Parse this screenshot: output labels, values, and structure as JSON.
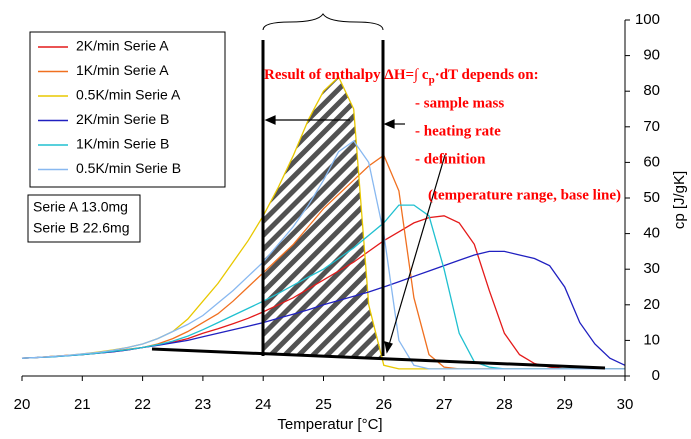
{
  "chart_data": {
    "type": "line",
    "xlabel": "Temperatur [°C]",
    "ylabel": "cp [J/gK]",
    "x": [
      20,
      20.25,
      20.5,
      20.75,
      21,
      21.25,
      21.5,
      21.75,
      22,
      22.25,
      22.5,
      22.75,
      23,
      23.25,
      23.5,
      23.75,
      24,
      24.25,
      24.5,
      24.75,
      25,
      25.25,
      25.5,
      25.75,
      26,
      26.25,
      26.5,
      26.75,
      27,
      27.25,
      27.5,
      27.75,
      28,
      28.25,
      28.5,
      28.75,
      29,
      29.25,
      29.5,
      29.75,
      30
    ],
    "series": [
      {
        "name": "2K/min Serie A",
        "color": "#e41a1a",
        "values": [
          5,
          5.2,
          5.5,
          5.8,
          6,
          6.4,
          6.8,
          7.3,
          8,
          8.7,
          9.5,
          10.5,
          12,
          13.3,
          14.7,
          16.2,
          18,
          20,
          22,
          24.5,
          27,
          29.5,
          32,
          35,
          38,
          40.5,
          43,
          44.5,
          45,
          43,
          37,
          24,
          12,
          6,
          3.5,
          2.5,
          2,
          2,
          2,
          2,
          2
        ]
      },
      {
        "name": "1K/min Serie A",
        "color": "#f07020",
        "values": [
          5,
          5.2,
          5.5,
          5.8,
          6,
          6.5,
          7,
          7.5,
          8,
          9,
          10.5,
          12.5,
          15,
          17.5,
          21,
          25,
          29,
          33,
          37,
          42,
          47,
          51,
          55,
          59,
          62,
          52,
          22,
          6,
          2.5,
          2,
          2,
          2,
          2,
          2,
          2,
          2,
          2,
          2,
          2,
          2,
          2
        ]
      },
      {
        "name": "0.5K/min Serie A",
        "color": "#e8c800",
        "values": [
          5,
          5.2,
          5.5,
          5.8,
          6.2,
          6.7,
          7.3,
          8,
          9,
          10.5,
          12.5,
          16,
          21,
          26,
          32,
          38,
          45,
          53,
          62,
          72,
          80,
          84,
          75,
          20,
          3,
          2,
          2,
          2,
          2,
          2,
          2,
          2,
          2,
          2,
          2,
          2,
          2,
          2,
          2,
          2,
          2
        ]
      },
      {
        "name": "2K/min Serie B",
        "color": "#2020c0",
        "values": [
          5,
          5.2,
          5.4,
          5.7,
          6,
          6.4,
          6.8,
          7.3,
          8,
          8.6,
          9.3,
          10,
          11,
          12,
          13,
          14,
          15,
          16.2,
          17.4,
          18.6,
          20,
          21.2,
          22.4,
          23.6,
          25,
          26.5,
          28,
          29.5,
          31,
          32.5,
          34,
          35,
          35,
          34,
          33,
          31,
          25,
          15,
          9,
          5,
          3
        ]
      },
      {
        "name": "1K/min Serie B",
        "color": "#20c0d0",
        "values": [
          5,
          5.2,
          5.4,
          5.7,
          6,
          6.4,
          6.9,
          7.4,
          8,
          8.8,
          9.8,
          11.2,
          13,
          15,
          17,
          19,
          21,
          23.2,
          25.5,
          27.8,
          30,
          33,
          36,
          39.5,
          43,
          48,
          48,
          45,
          30,
          12,
          4,
          2.5,
          2,
          2,
          2,
          2,
          2,
          2,
          2,
          2,
          2
        ]
      },
      {
        "name": "0.5K/min Serie B",
        "color": "#88b8f0",
        "values": [
          5,
          5.2,
          5.5,
          5.8,
          6.2,
          6.6,
          7.2,
          8,
          9,
          10.5,
          12.5,
          14.5,
          17,
          20.5,
          24,
          28,
          32,
          37,
          42,
          48,
          55,
          63,
          66,
          60,
          40,
          10,
          3,
          2,
          2,
          2,
          2,
          2,
          2,
          2,
          2,
          2,
          2,
          2,
          2,
          2,
          2
        ]
      }
    ],
    "xlim": [
      20,
      30
    ],
    "xticks": [
      20,
      21,
      22,
      23,
      24,
      25,
      26,
      27,
      28,
      29,
      30
    ],
    "ylim": [
      0,
      100
    ],
    "yticks": [
      0,
      10,
      20,
      30,
      40,
      50,
      60,
      70,
      80,
      90,
      100
    ],
    "info": [
      "Serie A 13.0mg",
      "Serie B 22.6mg"
    ],
    "annotation": {
      "head": "Result of enthalpy ΔH=∫ c",
      "sub": "p",
      "tail": "·dT depends on:",
      "items": [
        "- sample mass",
        "- heating rate",
        "- definition",
        "(temperature range, base line)"
      ]
    }
  }
}
